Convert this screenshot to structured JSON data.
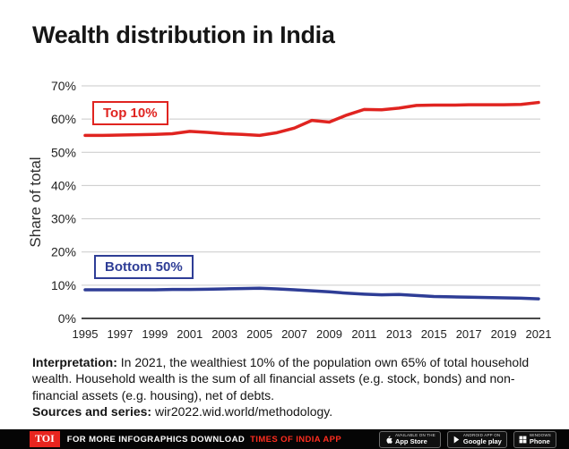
{
  "page": {
    "title": "Wealth distribution in India"
  },
  "chart_data": {
    "type": "line",
    "title": "Wealth distribution in India",
    "xlabel": "",
    "ylabel": "Share of total",
    "ylim": [
      0,
      70
    ],
    "y_ticks": [
      0,
      10,
      20,
      30,
      40,
      50,
      60,
      70
    ],
    "y_tick_suffix": "%",
    "grid": true,
    "legend_position": "inline-labels",
    "years": [
      1995,
      1996,
      1997,
      1998,
      1999,
      2000,
      2001,
      2002,
      2003,
      2004,
      2005,
      2006,
      2007,
      2008,
      2009,
      2010,
      2011,
      2012,
      2013,
      2014,
      2015,
      2016,
      2017,
      2018,
      2019,
      2020,
      2021
    ],
    "x_tick_years": [
      1995,
      1997,
      1999,
      2001,
      2003,
      2005,
      2007,
      2009,
      2011,
      2013,
      2015,
      2017,
      2019,
      2021
    ],
    "series": [
      {
        "name": "Top 10%",
        "color": "#e02420",
        "values": [
          55.1,
          55.1,
          55.2,
          55.3,
          55.4,
          55.6,
          56.3,
          56.0,
          55.6,
          55.4,
          55.1,
          55.9,
          57.3,
          59.6,
          59.1,
          61.2,
          62.9,
          62.8,
          63.3,
          64.1,
          64.2,
          64.2,
          64.3,
          64.3,
          64.3,
          64.4,
          65.0
        ]
      },
      {
        "name": "Bottom 50%",
        "color": "#2e3d96",
        "values": [
          8.6,
          8.6,
          8.6,
          8.6,
          8.6,
          8.7,
          8.7,
          8.8,
          8.9,
          9.0,
          9.1,
          8.9,
          8.6,
          8.3,
          8.0,
          7.6,
          7.3,
          7.1,
          7.2,
          6.9,
          6.6,
          6.5,
          6.4,
          6.3,
          6.2,
          6.1,
          5.9
        ]
      }
    ]
  },
  "annotation": {
    "interpretation_label": "Interpretation:",
    "interpretation_text": " In 2021, the wealthiest 10% of the population own 65% of total household wealth. Household wealth is the sum of all financial assets (e.g. stock, bonds) and non-financial assets (e.g. housing), net of debts.",
    "sources_label": "Sources and series:",
    "sources_text": " wir2022.wid.world/methodology."
  },
  "footer": {
    "logo": "TOI",
    "text_white": "FOR MORE  INFOGRAPHICS DOWNLOAD",
    "text_red": "TIMES OF INDIA  APP",
    "badges": [
      {
        "top": "Available on the",
        "bottom": "App Store"
      },
      {
        "top": "Android app on",
        "bottom": "Google play"
      },
      {
        "top": "Windows",
        "bottom": "Phone"
      }
    ]
  },
  "colors": {
    "top10_red": "#e02420",
    "bottom50_blue": "#2e3d96",
    "grid_gray": "#c9c9c9",
    "footer_black": "#050505",
    "toi_red": "#e8251f"
  }
}
